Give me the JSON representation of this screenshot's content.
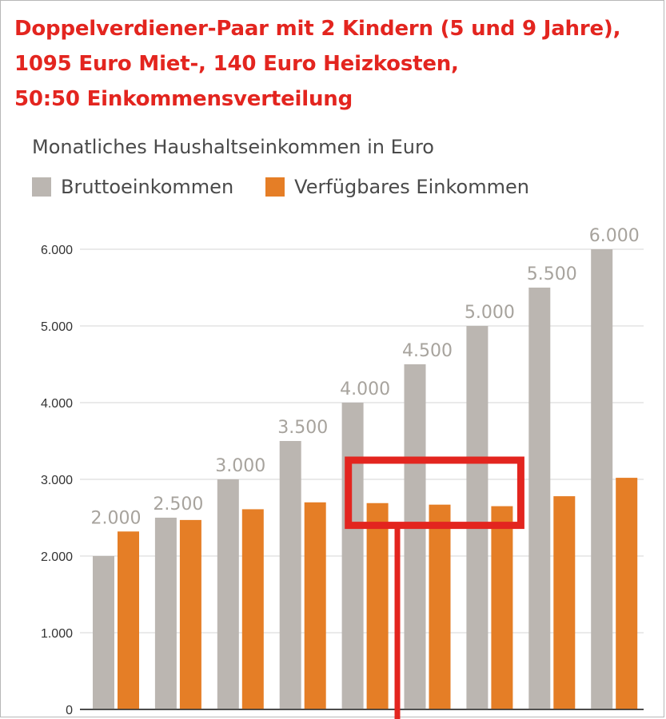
{
  "headline": {
    "line1": "Doppelverdiener-Paar mit 2 Kindern (5 und 9 Jahre),",
    "line2": "1095 Euro Miet-, 140 Euro Heizkosten,",
    "line3": "50:50 Einkommensverteilung"
  },
  "colors": {
    "headline": "#e3251f",
    "brutto": "#bbb6b1",
    "verfuegbar": "#e57e26",
    "highlight": "#e3251f"
  },
  "chart_data": {
    "type": "bar",
    "title": "Monatliches Haushaltseinkommen in Euro",
    "series": [
      {
        "name": "Bruttoeinkommen",
        "values": [
          2000,
          2500,
          3000,
          3500,
          4000,
          4500,
          5000,
          5500,
          6000
        ]
      },
      {
        "name": "Verfügbares Einkommen",
        "values": [
          2320,
          2470,
          2610,
          2700,
          2690,
          2670,
          2650,
          2780,
          3020
        ]
      }
    ],
    "data_labels": [
      "2.000",
      "2.500",
      "3.000",
      "3.500",
      "4.000",
      "4.500",
      "5.000",
      "5.500",
      "6.000"
    ],
    "y_ticks": [
      0,
      1000,
      2000,
      3000,
      4000,
      5000,
      6000
    ],
    "y_tick_labels": [
      "0",
      "1.000",
      "2.000",
      "3.000",
      "4.000",
      "5.000",
      "6.000"
    ],
    "ylim": [
      0,
      6000
    ],
    "grid": true,
    "legend": "top-left",
    "annotation": {
      "type": "highlight-box",
      "category_range": [
        4,
        6
      ],
      "value_range": [
        2400,
        3250
      ]
    }
  }
}
